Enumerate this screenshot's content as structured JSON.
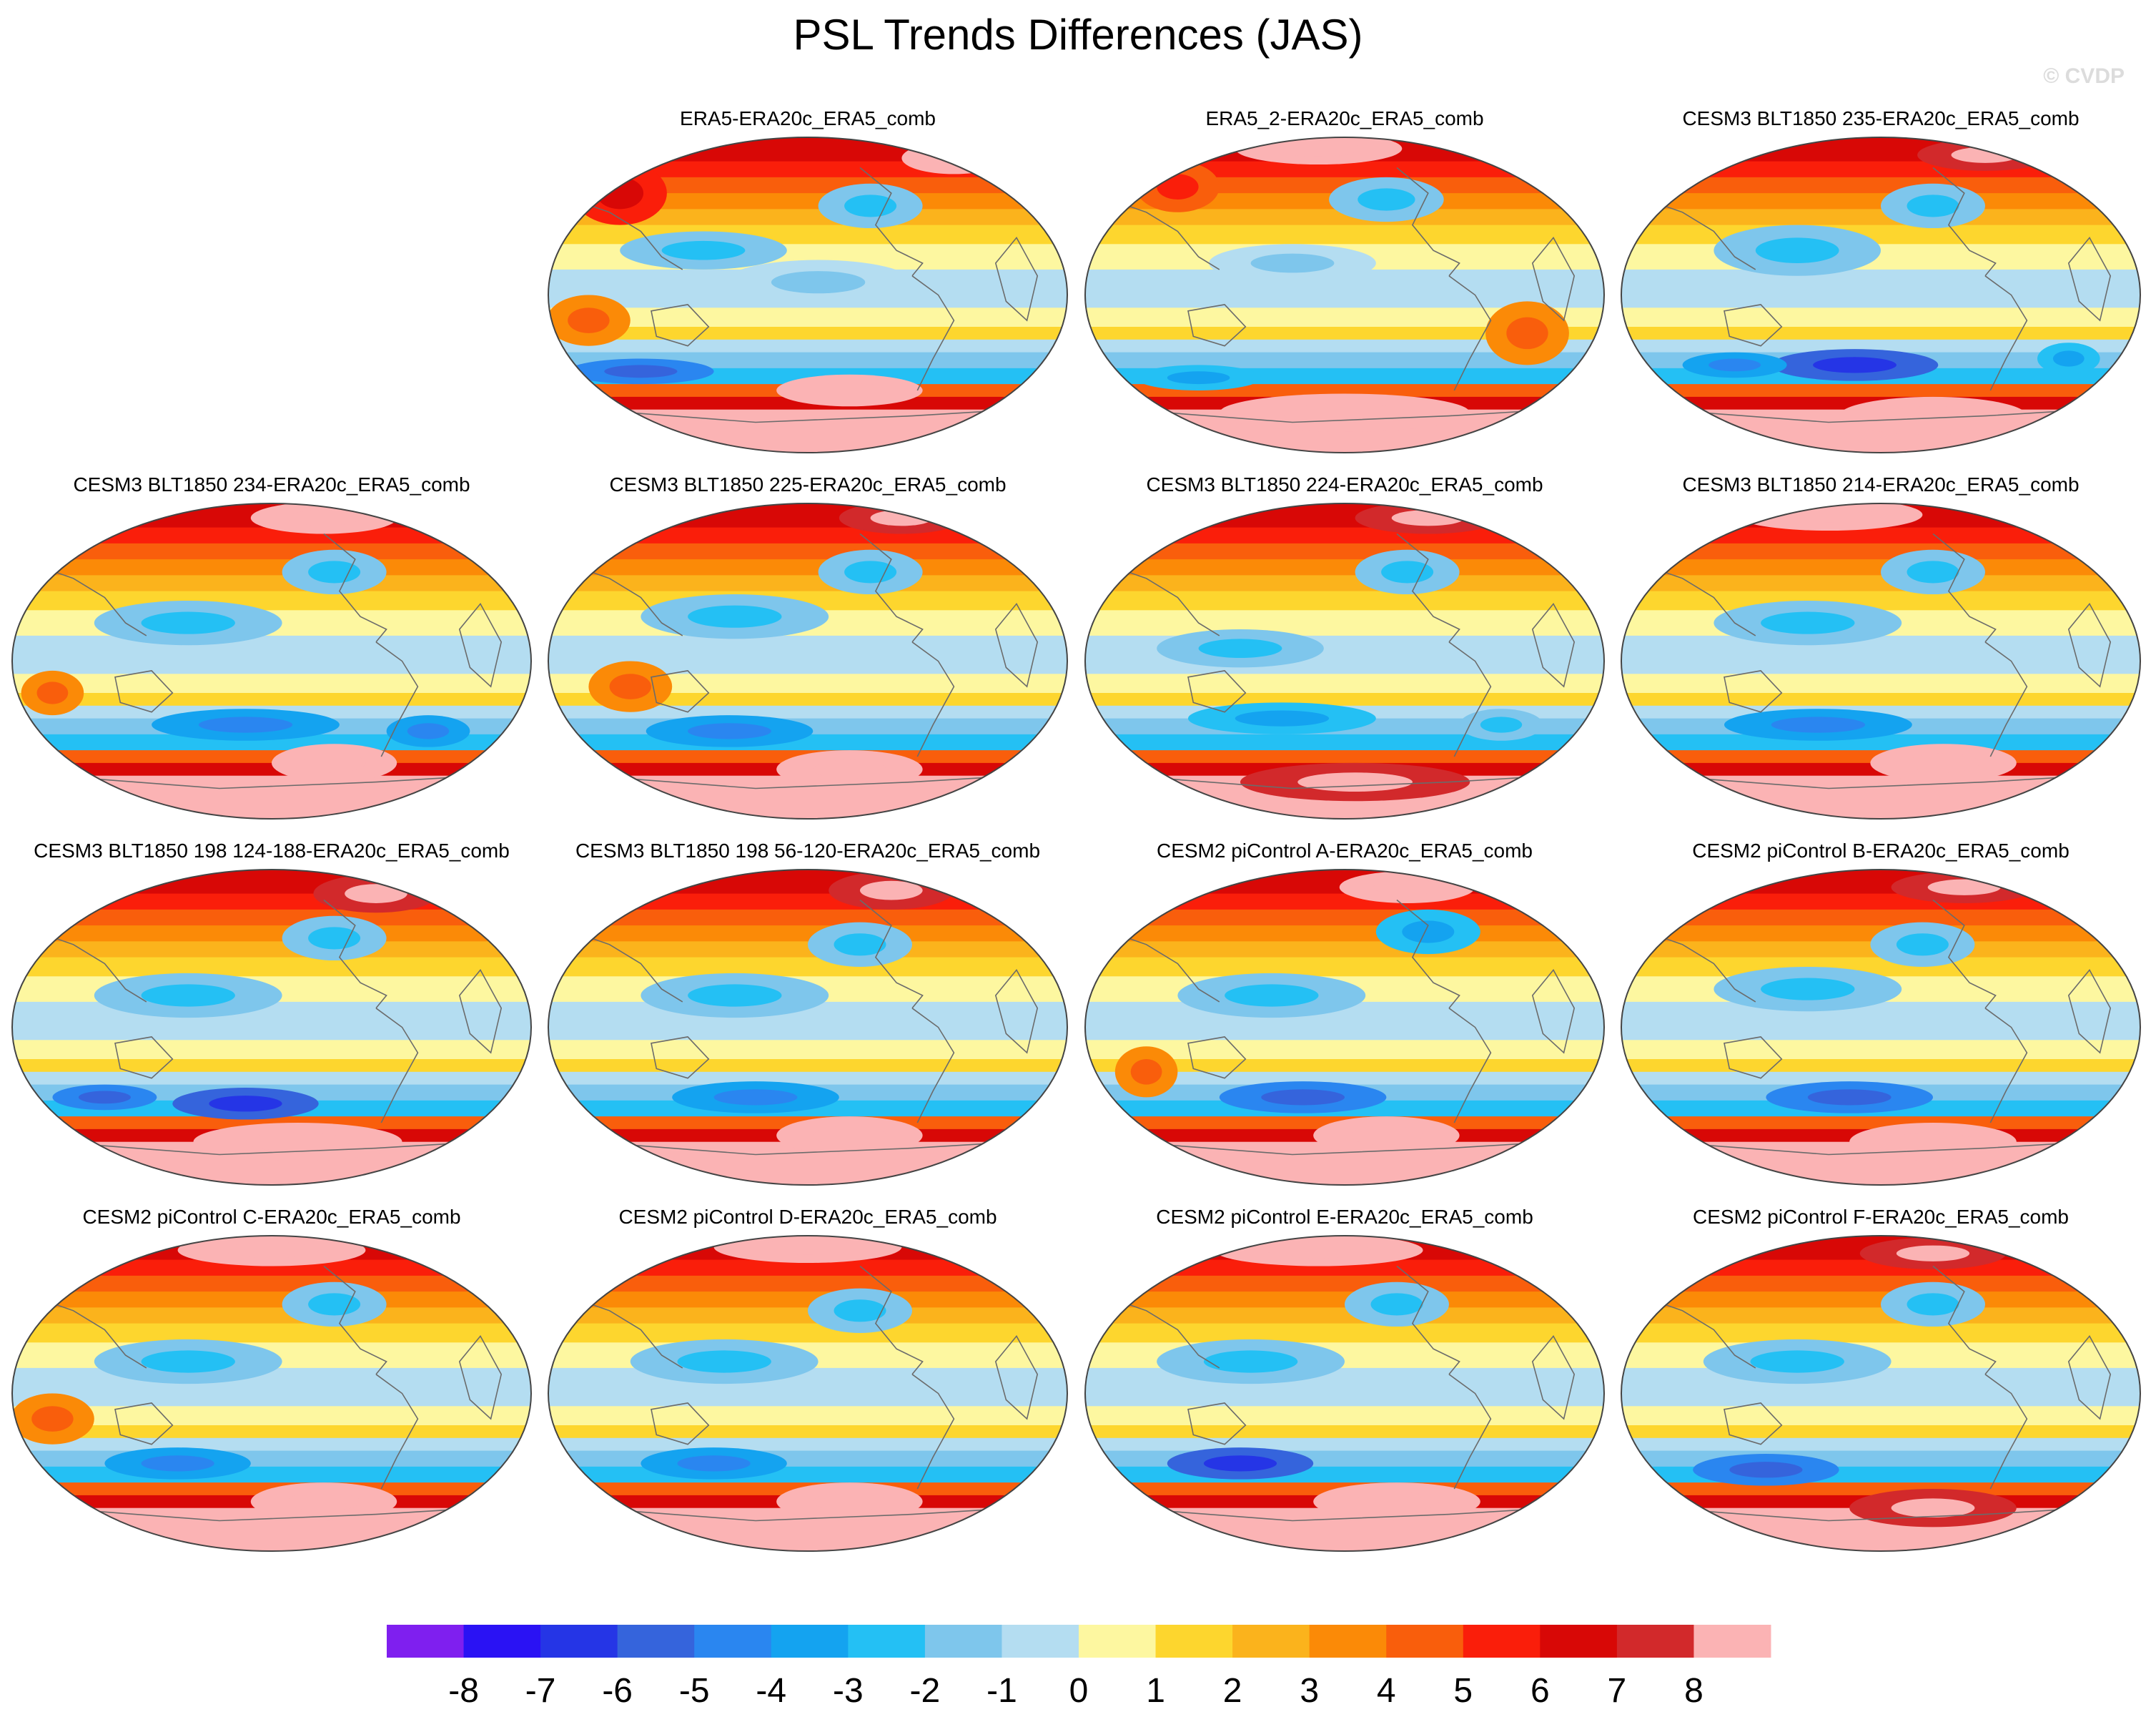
{
  "figure": {
    "title": "PSL Trends Differences (JAS)",
    "credit": "© CVDP"
  },
  "chart_data": {
    "type": "heatmap",
    "projection": "global map panels (Robinson-like ellipse)",
    "variable": "PSL trend differences",
    "season": "JAS",
    "panels": [
      {
        "title": "ERA5-ERA20c_ERA5_comb",
        "row": 0,
        "col": 1
      },
      {
        "title": "ERA5_2-ERA20c_ERA5_comb",
        "row": 0,
        "col": 2
      },
      {
        "title": "CESM3 BLT1850 235-ERA20c_ERA5_comb",
        "row": 0,
        "col": 3
      },
      {
        "title": "CESM3 BLT1850 234-ERA20c_ERA5_comb",
        "row": 1,
        "col": 0
      },
      {
        "title": "CESM3 BLT1850 225-ERA20c_ERA5_comb",
        "row": 1,
        "col": 1
      },
      {
        "title": "CESM3 BLT1850 224-ERA20c_ERA5_comb",
        "row": 1,
        "col": 2
      },
      {
        "title": "CESM3 BLT1850 214-ERA20c_ERA5_comb",
        "row": 1,
        "col": 3
      },
      {
        "title": "CESM3 BLT1850 198 124-188-ERA20c_ERA5_comb",
        "row": 2,
        "col": 0
      },
      {
        "title": "CESM3 BLT1850 198 56-120-ERA20c_ERA5_comb",
        "row": 2,
        "col": 1
      },
      {
        "title": "CESM2 piControl A-ERA20c_ERA5_comb",
        "row": 2,
        "col": 2
      },
      {
        "title": "CESM2 piControl B-ERA20c_ERA5_comb",
        "row": 2,
        "col": 3
      },
      {
        "title": "CESM2 piControl C-ERA20c_ERA5_comb",
        "row": 3,
        "col": 0
      },
      {
        "title": "CESM2 piControl D-ERA20c_ERA5_comb",
        "row": 3,
        "col": 1
      },
      {
        "title": "CESM2 piControl E-ERA20c_ERA5_comb",
        "row": 3,
        "col": 2
      },
      {
        "title": "CESM2 piControl F-ERA20c_ERA5_comb",
        "row": 3,
        "col": 3
      }
    ],
    "colorbar": {
      "labels": [
        "-8",
        "-7",
        "-6",
        "-5",
        "-4",
        "-3",
        "-2",
        "-1",
        "0",
        "1",
        "2",
        "3",
        "4",
        "5",
        "6",
        "7",
        "8"
      ],
      "colors": [
        "#7f1fef",
        "#2a12f4",
        "#2535e6",
        "#3564dc",
        "#2a86f0",
        "#14a3f0",
        "#24c0f4",
        "#7ec6ec",
        "#b4ddf1",
        "#fdf7a0",
        "#fdd62e",
        "#fbb31c",
        "#fb8a07",
        "#f95e0c",
        "#fa1e0a",
        "#d80806",
        "#d2292b",
        "#fbb3b4"
      ]
    }
  }
}
